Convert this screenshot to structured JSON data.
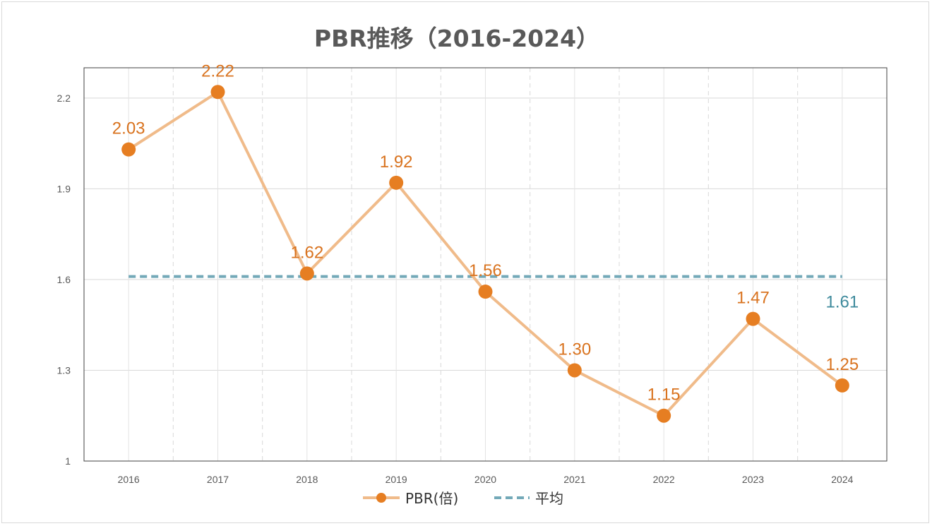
{
  "chart_data": {
    "type": "line",
    "title": "PBR推移（2016-2024）",
    "xlabel": "",
    "ylabel": "",
    "categories": [
      "2016",
      "2017",
      "2018",
      "2019",
      "2020",
      "2021",
      "2022",
      "2023",
      "2024"
    ],
    "series": [
      {
        "name": "PBR(倍)",
        "values": [
          2.03,
          2.22,
          1.62,
          1.92,
          1.56,
          1.3,
          1.15,
          1.47,
          1.25
        ],
        "data_labels": [
          "2.03",
          "2.22",
          "1.62",
          "1.92",
          "1.56",
          "1.30",
          "1.15",
          "1.47",
          "1.25"
        ],
        "line_color": "#f0bb8a",
        "marker_color": "#e67e22",
        "label_color": "#d9731f",
        "marker": "circle"
      },
      {
        "name": "平均",
        "values": [
          1.61,
          1.61,
          1.61,
          1.61,
          1.61,
          1.61,
          1.61,
          1.61,
          1.61
        ],
        "end_label": "1.61",
        "line_color": "#73a9b8",
        "label_color": "#3e8a9c",
        "style": "dashed"
      }
    ],
    "yticks": [
      {
        "value": 1.0,
        "label": "1"
      },
      {
        "value": 1.3,
        "label": "1.3"
      },
      {
        "value": 1.6,
        "label": "1.6"
      },
      {
        "value": 1.9,
        "label": "1.9"
      },
      {
        "value": 2.2,
        "label": "2.2"
      }
    ],
    "ylim": [
      1.0,
      2.3
    ],
    "grid": {
      "horizontal": true,
      "vertical_dashed": true
    },
    "legend_position": "bottom"
  }
}
